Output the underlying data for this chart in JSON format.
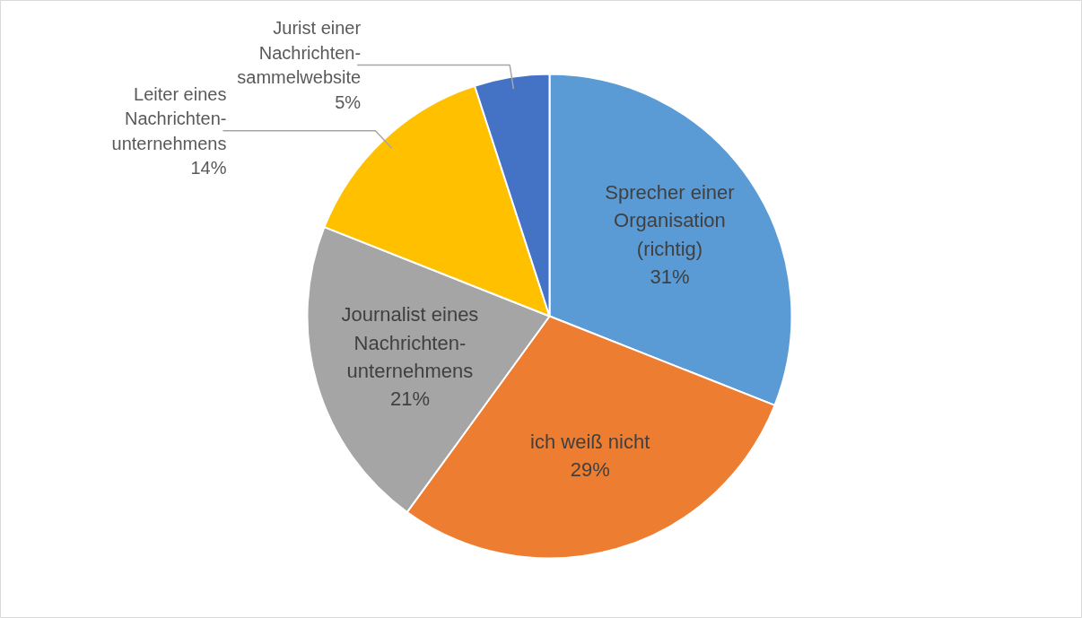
{
  "chart_data": {
    "type": "pie",
    "categories": [
      "Sprecher einer\nOrganisation\n(richtig)",
      "ich weiß nicht",
      "Journalist eines\nNachrichten-\nunternehmens",
      "Leiter eines\nNachrichten-\nunternehmens",
      "Jurist einer\nNachrichten-\nsammelwebsite"
    ],
    "values": [
      31,
      29,
      21,
      14,
      5
    ],
    "value_labels": [
      "31%",
      "29%",
      "21%",
      "14%",
      "5%"
    ],
    "colors": [
      "#5b9bd5",
      "#ed7d31",
      "#a5a5a5",
      "#ffc000",
      "#4472c4"
    ]
  }
}
